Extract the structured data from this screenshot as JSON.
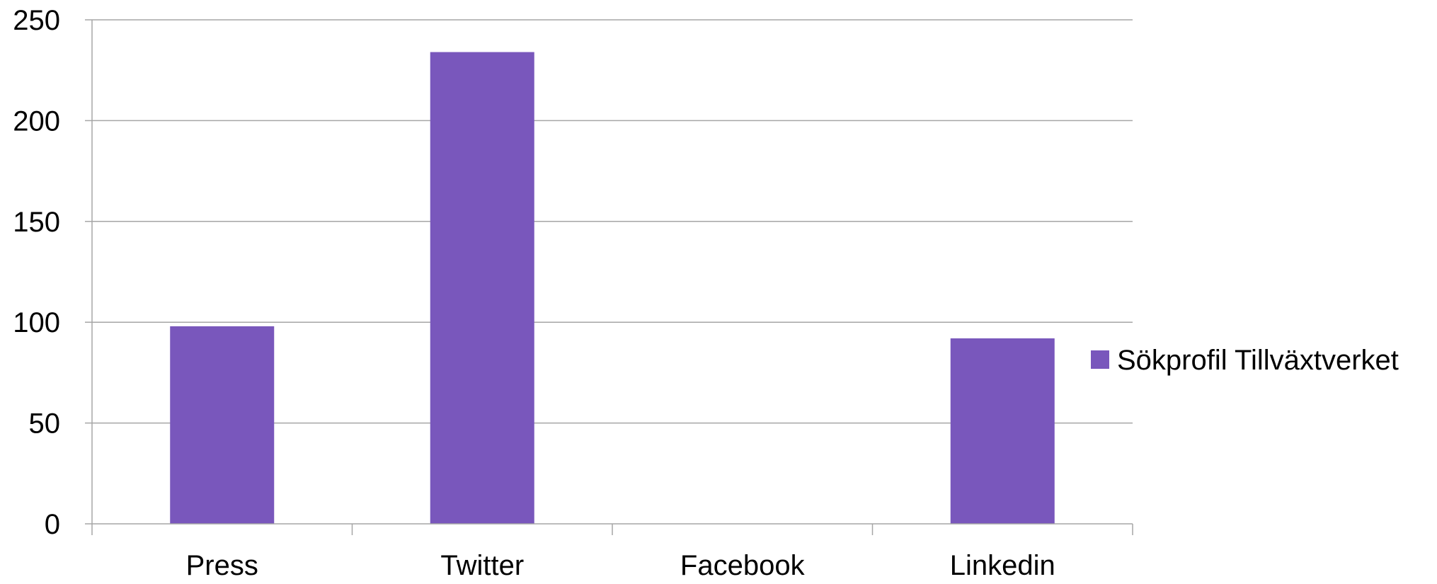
{
  "chart_data": {
    "type": "bar",
    "categories": [
      "Press",
      "Twitter",
      "Facebook",
      "Linkedin"
    ],
    "series": [
      {
        "name": "Sökprofil Tillväxtverket",
        "values": [
          98,
          234,
          0,
          92
        ]
      }
    ],
    "ylim": [
      0,
      250
    ],
    "yticks": [
      0,
      50,
      100,
      150,
      200,
      250
    ],
    "grid": true,
    "legend_position": "right",
    "bar_color": "#7957BC",
    "grid_color": "#A6A6A6"
  }
}
